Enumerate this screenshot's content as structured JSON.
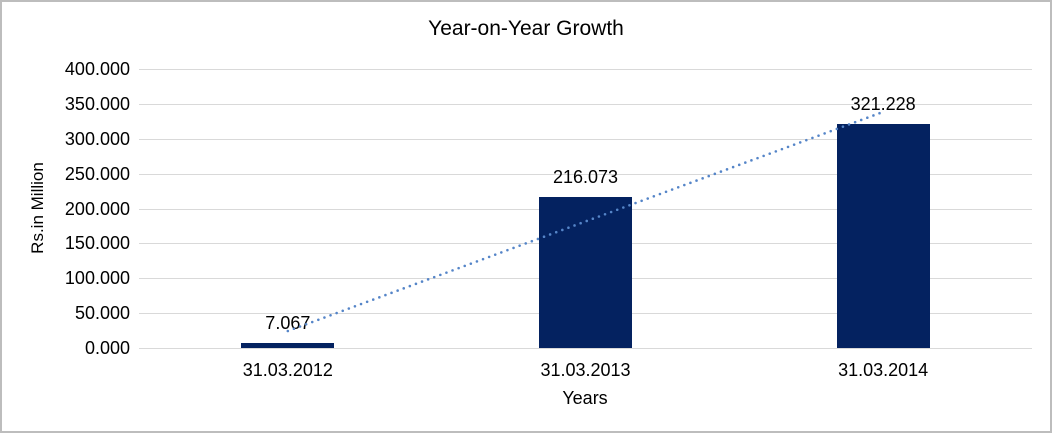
{
  "chart_data": {
    "type": "bar",
    "title": "Year-on-Year Growth",
    "xlabel": "Years",
    "ylabel": "Rs.in Million",
    "categories": [
      "31.03.2012",
      "31.03.2013",
      "31.03.2014"
    ],
    "values": [
      7.067,
      216.073,
      321.228
    ],
    "value_labels": [
      "7.067",
      "216.073",
      "321.228"
    ],
    "ylim": [
      0,
      400
    ],
    "ytick_step": 50,
    "ytick_labels": [
      "0.000",
      "50.000",
      "100.000",
      "150.000",
      "200.000",
      "250.000",
      "300.000",
      "350.000",
      "400.000"
    ],
    "grid": true,
    "legend": "none",
    "bar_color": "#042260",
    "gridline_color": "#d9d9d9",
    "text_color": "#000000",
    "background": "#ffffff",
    "border_color": "#bdbdbd",
    "trendline": {
      "type": "linear",
      "style": "dotted",
      "color": "#5585c8"
    }
  }
}
